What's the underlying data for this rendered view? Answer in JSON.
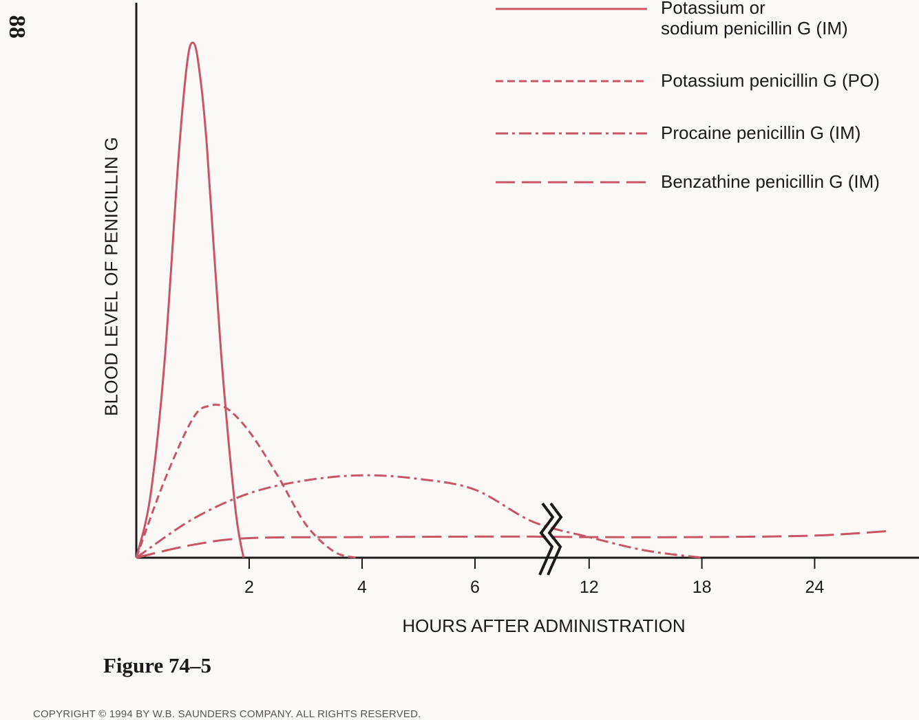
{
  "page_number": "88",
  "figure_caption": "Figure 74–5",
  "copyright": "COPYRIGHT © 1994 BY W.B. SAUNDERS COMPANY. ALL RIGHTS RESERVED.",
  "colors": {
    "curve": "#c85466",
    "axis": "#1a1a1a"
  },
  "chart_data": {
    "type": "line",
    "title": "",
    "xlabel": "HOURS AFTER ADMINISTRATION",
    "ylabel": "BLOOD LEVEL OF PENICILLIN G",
    "x_ticks": [
      "2",
      "4",
      "6",
      "12",
      "18",
      "24"
    ],
    "x_axis_break": "between 6 and 12",
    "grid": false,
    "legend_position": "top-right",
    "series": [
      {
        "name": "Potassium or\nsodium penicillin G (IM)",
        "style": "solid",
        "x": [
          0,
          0.25,
          0.5,
          0.75,
          0.9,
          1.0,
          1.1,
          1.25,
          1.5,
          1.75,
          1.9
        ],
        "y": [
          0,
          12,
          38,
          78,
          96,
          100,
          96,
          80,
          40,
          10,
          0
        ]
      },
      {
        "name": "Potassium penicillin G (PO)",
        "style": "dashed",
        "x": [
          0,
          0.5,
          1.0,
          1.3,
          1.6,
          2.0,
          2.5,
          3.0,
          3.5,
          3.9
        ],
        "y": [
          0,
          15,
          27,
          29.5,
          29,
          24.5,
          16,
          6.5,
          1.2,
          0
        ]
      },
      {
        "name": "Procaine penicillin G (IM)",
        "style": "dash-dot",
        "x": [
          0,
          1,
          2,
          3,
          4,
          5,
          6,
          9,
          12,
          15,
          18
        ],
        "y": [
          0,
          7.5,
          12.5,
          15,
          16,
          15.3,
          13.2,
          7,
          4,
          1.4,
          0
        ]
      },
      {
        "name": "Benzathine penicillin G (IM)",
        "style": "long-dash",
        "x": [
          0,
          1,
          2,
          4,
          6,
          9,
          12,
          18,
          24,
          28
        ],
        "y": [
          0,
          2.5,
          3.8,
          4,
          4.1,
          4.1,
          4,
          4,
          4.3,
          5.2
        ]
      }
    ]
  }
}
